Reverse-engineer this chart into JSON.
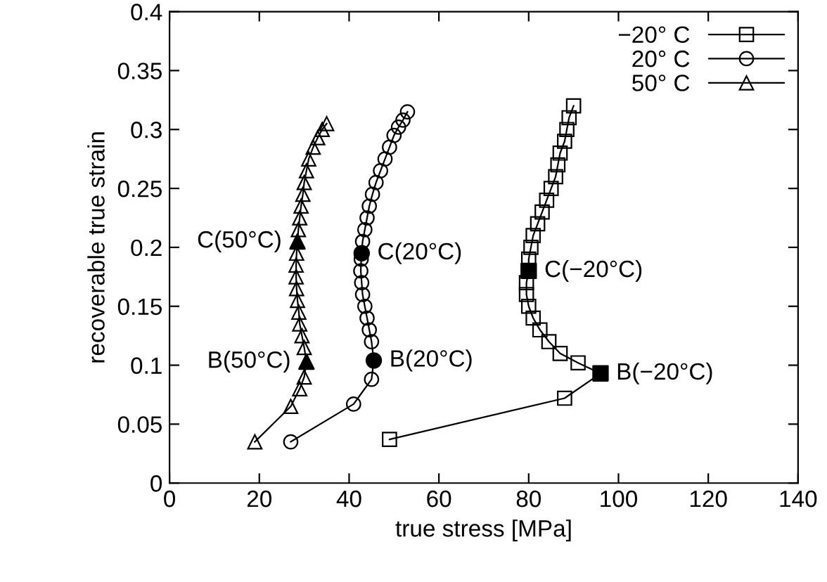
{
  "chart_data": {
    "type": "line",
    "xlabel": "true stress [MPa]",
    "ylabel": "recoverable true strain",
    "xlim": [
      0,
      140
    ],
    "xticks": [
      0,
      20,
      40,
      60,
      80,
      100,
      120,
      140
    ],
    "ylim": [
      0,
      0.4
    ],
    "yticks": [
      0,
      0.05,
      0.1,
      0.15,
      0.2,
      0.25,
      0.3,
      0.35,
      0.4
    ],
    "grid": false,
    "legend": "top right",
    "line_style": "solid",
    "series": [
      {
        "name": "−20° C",
        "color": "#000000",
        "marker": "square",
        "x": [
          49,
          88,
          96,
          91,
          87,
          84.5,
          82.5,
          81,
          80,
          79.5,
          79.5,
          80,
          80,
          80.5,
          81,
          82,
          83,
          84,
          85,
          86,
          86.5,
          87,
          88,
          88.5,
          89,
          90
        ],
        "values": [
          0.037,
          0.072,
          0.093,
          0.102,
          0.11,
          0.12,
          0.13,
          0.14,
          0.15,
          0.16,
          0.17,
          0.18,
          0.19,
          0.2,
          0.21,
          0.22,
          0.23,
          0.24,
          0.25,
          0.26,
          0.27,
          0.28,
          0.29,
          0.3,
          0.31,
          0.32
        ]
      },
      {
        "name": "20° C",
        "color": "#000000",
        "marker": "circle",
        "x": [
          27,
          41,
          45,
          45.5,
          45,
          44.5,
          44,
          43.5,
          43,
          42.8,
          42.6,
          42.7,
          42.8,
          43,
          43.5,
          44,
          44.5,
          45.2,
          46,
          47,
          48,
          49,
          50,
          51,
          52,
          53
        ],
        "values": [
          0.035,
          0.067,
          0.088,
          0.104,
          0.12,
          0.13,
          0.14,
          0.15,
          0.16,
          0.17,
          0.18,
          0.19,
          0.195,
          0.205,
          0.215,
          0.225,
          0.235,
          0.245,
          0.255,
          0.265,
          0.275,
          0.285,
          0.295,
          0.302,
          0.308,
          0.315
        ]
      },
      {
        "name": "50° C",
        "color": "#000000",
        "marker": "triangle",
        "x": [
          19,
          27,
          29,
          30,
          30.5,
          30,
          29.5,
          29,
          28.8,
          28.5,
          28.3,
          28.2,
          28.2,
          28.3,
          28.5,
          28.7,
          29,
          29.3,
          29.7,
          30,
          30.5,
          31,
          32,
          33,
          34,
          35
        ],
        "values": [
          0.035,
          0.065,
          0.08,
          0.09,
          0.103,
          0.115,
          0.125,
          0.135,
          0.145,
          0.155,
          0.165,
          0.175,
          0.185,
          0.195,
          0.205,
          0.215,
          0.225,
          0.235,
          0.245,
          0.255,
          0.265,
          0.275,
          0.285,
          0.293,
          0.3,
          0.305
        ]
      },
      {
        "type": "scatter",
        "color": "#000000",
        "marker": "square",
        "x": [
          96,
          80
        ],
        "values": [
          0.093,
          0.18
        ]
      },
      {
        "type": "scatter",
        "color": "#000000",
        "marker": "circle",
        "x": [
          45.5,
          42.8
        ],
        "values": [
          0.104,
          0.195
        ]
      },
      {
        "type": "scatter",
        "color": "#000000",
        "marker": "triangle",
        "x": [
          30.5,
          28.5
        ],
        "values": [
          0.103,
          0.205
        ]
      }
    ],
    "annotations": [
      {
        "text": "B(−20°C)",
        "x": 96,
        "y": 0.093
      },
      {
        "text": "C(−20°C)",
        "x": 80,
        "y": 0.18
      },
      {
        "text": "B(20°C)",
        "x": 45.5,
        "y": 0.104
      },
      {
        "text": "C(20°C)",
        "x": 42.8,
        "y": 0.195
      },
      {
        "text": "B(50°C)",
        "x": 30.5,
        "y": 0.103
      },
      {
        "text": "C(50°C)",
        "x": 28.5,
        "y": 0.205
      }
    ]
  }
}
